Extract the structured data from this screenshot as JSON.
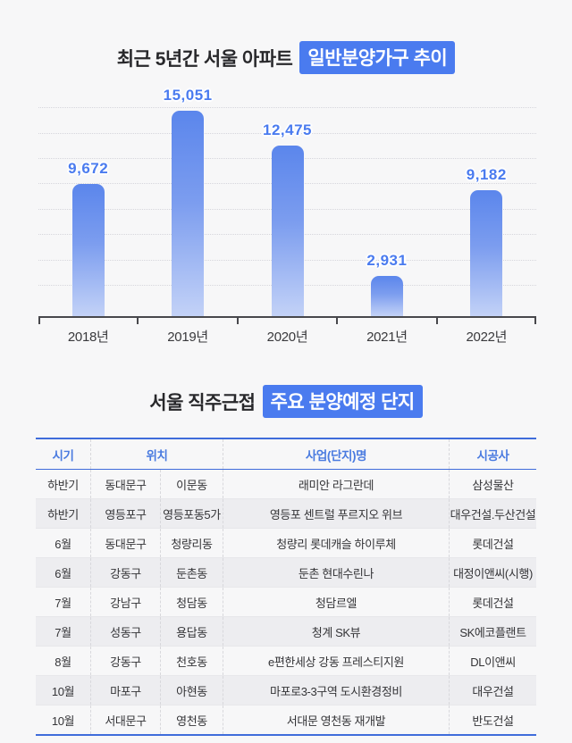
{
  "page": {
    "background": "#f7f7f8",
    "accent_blue": "#4a7bef",
    "border_blue": "#3f6cdb"
  },
  "chart_section": {
    "title_plain": "최근 5년간 서울 아파트",
    "title_highlight": "일반분양가구 추이"
  },
  "chart_data": {
    "type": "bar",
    "title": "최근 5년간 서울 아파트 일반분양가구 추이",
    "categories": [
      "2018년",
      "2019년",
      "2020년",
      "2021년",
      "2022년"
    ],
    "values": [
      9672,
      15051,
      12475,
      2931,
      9182
    ],
    "value_labels": [
      "9,672",
      "15,051",
      "12,475",
      "2,931",
      "9,182"
    ],
    "xlabel": "",
    "ylabel": "",
    "ylim": [
      0,
      16000
    ],
    "grid": "horizontal-dotted",
    "legend": "none",
    "bar_color_top": "#5b86ec",
    "bar_color_bottom": "#c3d2f7",
    "label_color": "#4a7bef"
  },
  "table_section": {
    "title_plain": "서울 직주근접",
    "title_highlight": "주요 분양예정 단지",
    "columns": [
      "시기",
      "위치",
      "사업(단지)명",
      "시공사"
    ],
    "rows": [
      [
        "하반기",
        "동대문구",
        "이문동",
        "래미안 라그란데",
        "삼성물산"
      ],
      [
        "하반기",
        "영등포구",
        "영등포동5가",
        "영등포 센트럴 푸르지오 위브",
        "대우건설.두산건설"
      ],
      [
        "6월",
        "동대문구",
        "청량리동",
        "청량리 롯데캐슬 하이루체",
        "롯데건설"
      ],
      [
        "6월",
        "강동구",
        "둔촌동",
        "둔촌 현대수린나",
        "대정이앤씨(시행)"
      ],
      [
        "7월",
        "강남구",
        "청담동",
        "청담르엘",
        "롯데건설"
      ],
      [
        "7월",
        "성동구",
        "용답동",
        "청계 SK뷰",
        "SK에코플랜트"
      ],
      [
        "8월",
        "강동구",
        "천호동",
        "e편한세상 강동 프레스티지원",
        "DL이앤씨"
      ],
      [
        "10월",
        "마포구",
        "아현동",
        "마포로3-3구역 도시환경정비",
        "대우건설"
      ],
      [
        "10월",
        "서대문구",
        "영천동",
        "서대문 영천동 재개발",
        "반도건설"
      ]
    ]
  }
}
